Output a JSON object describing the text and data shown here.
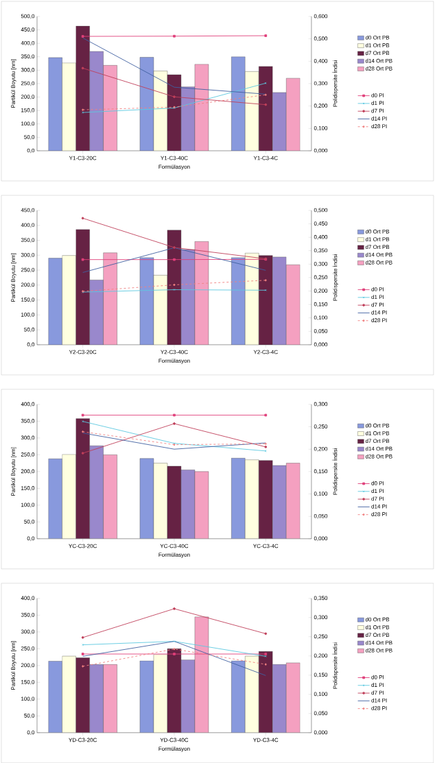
{
  "chart_data": [
    {
      "type": "bar",
      "xlabel": "Formülasyon",
      "ylabel": "Partikül Boyutu [nm]",
      "y2label": "Polidispersite İndisi",
      "categories": [
        "Y1-C3-20C",
        "Y1-C3-40C",
        "Y1-C3-4C"
      ],
      "ylim": [
        0,
        500
      ],
      "yticks": [
        {
          "value": 0,
          "label": "0,0"
        },
        {
          "value": 50,
          "label": "50,0"
        },
        {
          "value": 100,
          "label": "100,0"
        },
        {
          "value": 150,
          "label": "150,0"
        },
        {
          "value": 200,
          "label": "200,0"
        },
        {
          "value": 250,
          "label": "250,0"
        },
        {
          "value": 300,
          "label": "300,0"
        },
        {
          "value": 350,
          "label": "350,0"
        },
        {
          "value": 400,
          "label": "400,0"
        },
        {
          "value": 450,
          "label": "450,0"
        },
        {
          "value": 500,
          "label": "500,0"
        }
      ],
      "y2lim": [
        0,
        0.6
      ],
      "y2ticks": [
        {
          "value": 0,
          "label": "0,000"
        },
        {
          "value": 0.1,
          "label": "0,100"
        },
        {
          "value": 0.2,
          "label": "0,200"
        },
        {
          "value": 0.3,
          "label": "0,300"
        },
        {
          "value": 0.4,
          "label": "0,400"
        },
        {
          "value": 0.5,
          "label": "0,500"
        },
        {
          "value": 0.6,
          "label": "0,600"
        }
      ],
      "legend": "right",
      "series": [
        {
          "name": "d0 Ort PB",
          "color": "#8899dd",
          "values": [
            347,
            348,
            350
          ]
        },
        {
          "name": "d1 Ort PB",
          "color": "#ffffe0",
          "values": [
            327,
            297,
            295
          ]
        },
        {
          "name": "d7 Ort PB",
          "color": "#662244",
          "values": [
            464,
            283,
            314
          ]
        },
        {
          "name": "d14 Ort PB",
          "color": "#9988cc",
          "values": [
            370,
            238,
            217
          ]
        },
        {
          "name": "d28 Ort PB",
          "color": "#f4a0c0",
          "values": [
            318,
            322,
            270
          ]
        },
        {
          "name": "d0 PI",
          "type": "line",
          "axis": "y2",
          "color": "#e0407a",
          "marker": "square",
          "line_style": "solid",
          "values": [
            0.511,
            0.512,
            0.514
          ]
        },
        {
          "name": "d1 PI",
          "type": "line",
          "axis": "y2",
          "color": "#5bc8e0",
          "marker": "cross",
          "line_style": "solid",
          "values": [
            0.171,
            0.191,
            0.302
          ]
        },
        {
          "name": "d7 PI",
          "type": "line",
          "axis": "y2",
          "color": "#c0405a",
          "marker": "circle",
          "line_style": "solid",
          "values": [
            0.369,
            0.241,
            0.206
          ]
        },
        {
          "name": "d14 PI",
          "type": "line",
          "axis": "y2",
          "color": "#4060a0",
          "marker": "none",
          "line_style": "solid",
          "values": [
            0.504,
            0.284,
            0.253
          ]
        },
        {
          "name": "d28 PI",
          "type": "line",
          "axis": "y2",
          "color": "#f08080",
          "marker": "diamond",
          "line_style": "dashed",
          "values": [
            0.183,
            0.195,
            0.25
          ]
        }
      ]
    },
    {
      "type": "bar",
      "xlabel": "Formülasyon",
      "ylabel": "Partikül Boyutu [nm]",
      "y2label": "Polidispersite İndisi",
      "categories": [
        "Y2-C3-20C",
        "Y2-C3-40C",
        "Y2-C3-4C"
      ],
      "ylim": [
        0,
        450
      ],
      "yticks": [
        {
          "value": 0,
          "label": "0,0"
        },
        {
          "value": 50,
          "label": "50,0"
        },
        {
          "value": 100,
          "label": "100,0"
        },
        {
          "value": 150,
          "label": "150,0"
        },
        {
          "value": 200,
          "label": "200,0"
        },
        {
          "value": 250,
          "label": "250,0"
        },
        {
          "value": 300,
          "label": "300,0"
        },
        {
          "value": 350,
          "label": "350,0"
        },
        {
          "value": 400,
          "label": "400,0"
        },
        {
          "value": 450,
          "label": "450,0"
        }
      ],
      "y2lim": [
        0,
        0.5
      ],
      "y2ticks": [
        {
          "value": 0,
          "label": "0,000"
        },
        {
          "value": 0.05,
          "label": "0,050"
        },
        {
          "value": 0.1,
          "label": "0,100"
        },
        {
          "value": 0.15,
          "label": "0,150"
        },
        {
          "value": 0.2,
          "label": "0,200"
        },
        {
          "value": 0.25,
          "label": "0,250"
        },
        {
          "value": 0.3,
          "label": "0,300"
        },
        {
          "value": 0.35,
          "label": "0,350"
        },
        {
          "value": 0.4,
          "label": "0,400"
        },
        {
          "value": 0.45,
          "label": "0,450"
        },
        {
          "value": 0.5,
          "label": "0,500"
        }
      ],
      "legend": "right",
      "series": [
        {
          "name": "d0 Ort PB",
          "color": "#8899dd",
          "values": [
            290,
            292,
            292
          ]
        },
        {
          "name": "d1 Ort PB",
          "color": "#ffffe0",
          "values": [
            299,
            233,
            307
          ]
        },
        {
          "name": "d7 Ort PB",
          "color": "#662244",
          "values": [
            386,
            384,
            299
          ]
        },
        {
          "name": "d14 Ort PB",
          "color": "#9988cc",
          "values": [
            217,
            319,
            294
          ]
        },
        {
          "name": "d28 Ort PB",
          "color": "#f4a0c0",
          "values": [
            308,
            346,
            268
          ]
        },
        {
          "name": "d0 PI",
          "type": "line",
          "axis": "y2",
          "color": "#e0407a",
          "marker": "square",
          "line_style": "solid",
          "values": [
            0.317,
            0.317,
            0.318
          ]
        },
        {
          "name": "d1 PI",
          "type": "line",
          "axis": "y2",
          "color": "#5bc8e0",
          "marker": "cross",
          "line_style": "solid",
          "values": [
            0.196,
            0.205,
            0.203
          ]
        },
        {
          "name": "d7 PI",
          "type": "line",
          "axis": "y2",
          "color": "#c0405a",
          "marker": "circle",
          "line_style": "solid",
          "values": [
            0.471,
            0.362,
            0.32
          ]
        },
        {
          "name": "d14 PI",
          "type": "line",
          "axis": "y2",
          "color": "#4060a0",
          "marker": "none",
          "line_style": "solid",
          "values": [
            0.269,
            0.361,
            0.277
          ]
        },
        {
          "name": "d28 PI",
          "type": "line",
          "axis": "y2",
          "color": "#f08080",
          "marker": "diamond",
          "line_style": "dashed",
          "values": [
            0.199,
            0.223,
            0.24
          ]
        }
      ]
    },
    {
      "type": "bar",
      "xlabel": "Formülasyon",
      "ylabel": "Partikül Boyutu [nm]",
      "y2label": "Polidispersite İndisi",
      "categories": [
        "YC-C3-20C",
        "YC-C3-40C",
        "YC-C3-4C"
      ],
      "ylim": [
        0,
        400
      ],
      "yticks": [
        {
          "value": 0,
          "label": "0,0"
        },
        {
          "value": 50,
          "label": "50,0"
        },
        {
          "value": 100,
          "label": "100,0"
        },
        {
          "value": 150,
          "label": "150,0"
        },
        {
          "value": 200,
          "label": "200,0"
        },
        {
          "value": 250,
          "label": "250,0"
        },
        {
          "value": 300,
          "label": "300,0"
        },
        {
          "value": 350,
          "label": "350,0"
        },
        {
          "value": 400,
          "label": "400,0"
        }
      ],
      "y2lim": [
        0,
        0.3
      ],
      "y2ticks": [
        {
          "value": 0,
          "label": "0,000"
        },
        {
          "value": 0.05,
          "label": "0,050"
        },
        {
          "value": 0.1,
          "label": "0,100"
        },
        {
          "value": 0.15,
          "label": "0,150"
        },
        {
          "value": 0.2,
          "label": "0,200"
        },
        {
          "value": 0.25,
          "label": "0,250"
        },
        {
          "value": 0.3,
          "label": "0,300"
        }
      ],
      "legend": "right",
      "series": [
        {
          "name": "d0 Ort PB",
          "color": "#8899dd",
          "values": [
            238,
            239,
            240
          ]
        },
        {
          "name": "d1 Ort PB",
          "color": "#ffffe0",
          "values": [
            251,
            225,
            235
          ]
        },
        {
          "name": "d7 Ort PB",
          "color": "#662244",
          "values": [
            358,
            216,
            233
          ]
        },
        {
          "name": "d14 Ort PB",
          "color": "#9988cc",
          "values": [
            277,
            205,
            218
          ]
        },
        {
          "name": "d28 Ort PB",
          "color": "#f4a0c0",
          "values": [
            250,
            200,
            225
          ]
        },
        {
          "name": "d0 PI",
          "type": "line",
          "axis": "y2",
          "color": "#e0407a",
          "marker": "square",
          "line_style": "solid",
          "values": [
            0.276,
            0.276,
            0.276
          ]
        },
        {
          "name": "d1 PI",
          "type": "line",
          "axis": "y2",
          "color": "#5bc8e0",
          "marker": "cross",
          "line_style": "solid",
          "values": [
            0.262,
            0.213,
            0.196
          ]
        },
        {
          "name": "d7 PI",
          "type": "line",
          "axis": "y2",
          "color": "#c0405a",
          "marker": "circle",
          "line_style": "solid",
          "values": [
            0.191,
            0.257,
            0.205
          ]
        },
        {
          "name": "d14 PI",
          "type": "line",
          "axis": "y2",
          "color": "#4060a0",
          "marker": "none",
          "line_style": "solid",
          "values": [
            0.236,
            0.2,
            0.214
          ]
        },
        {
          "name": "d28 PI",
          "type": "line",
          "axis": "y2",
          "color": "#f08080",
          "marker": "diamond",
          "line_style": "dashed",
          "values": [
            0.239,
            0.21,
            0.212
          ]
        }
      ]
    },
    {
      "type": "bar",
      "xlabel": "Formülasyon",
      "ylabel": "Partikül Boyutu [nm]",
      "y2label": "Polidispersite İndisi",
      "categories": [
        "YD-C3-20C",
        "YD-C3-40C",
        "YD-C3-4C"
      ],
      "ylim": [
        0,
        400
      ],
      "yticks": [
        {
          "value": 0,
          "label": "0,0"
        },
        {
          "value": 50,
          "label": "50,0"
        },
        {
          "value": 100,
          "label": "100,0"
        },
        {
          "value": 150,
          "label": "150,0"
        },
        {
          "value": 200,
          "label": "200,0"
        },
        {
          "value": 250,
          "label": "250,0"
        },
        {
          "value": 300,
          "label": "300,0"
        },
        {
          "value": 350,
          "label": "350,0"
        },
        {
          "value": 400,
          "label": "400,0"
        }
      ],
      "y2lim": [
        0,
        0.35
      ],
      "y2ticks": [
        {
          "value": 0,
          "label": "0,000"
        },
        {
          "value": 0.05,
          "label": "0,050"
        },
        {
          "value": 0.1,
          "label": "0,100"
        },
        {
          "value": 0.15,
          "label": "0,150"
        },
        {
          "value": 0.2,
          "label": "0,200"
        },
        {
          "value": 0.25,
          "label": "0,250"
        },
        {
          "value": 0.3,
          "label": "0,300"
        },
        {
          "value": 0.35,
          "label": "0,350"
        }
      ],
      "legend": "right",
      "series": [
        {
          "name": "d0 Ort PB",
          "color": "#8899dd",
          "values": [
            213,
            214,
            214
          ]
        },
        {
          "name": "d1 Ort PB",
          "color": "#ffffe0",
          "values": [
            228,
            233,
            228
          ]
        },
        {
          "name": "d7 Ort PB",
          "color": "#662244",
          "values": [
            223,
            250,
            242
          ]
        },
        {
          "name": "d14 Ort PB",
          "color": "#9988cc",
          "values": [
            203,
            217,
            203
          ]
        },
        {
          "name": "d28 Ort PB",
          "color": "#f4a0c0",
          "values": [
            203,
            345,
            208
          ]
        },
        {
          "name": "d0 PI",
          "type": "line",
          "axis": "y2",
          "color": "#e0407a",
          "marker": "square",
          "line_style": "solid",
          "values": [
            0.205,
            0.205,
            0.205
          ]
        },
        {
          "name": "d1 PI",
          "type": "line",
          "axis": "y2",
          "color": "#5bc8e0",
          "marker": "cross",
          "line_style": "solid",
          "values": [
            0.229,
            0.238,
            0.199
          ]
        },
        {
          "name": "d7 PI",
          "type": "line",
          "axis": "y2",
          "color": "#c0405a",
          "marker": "circle",
          "line_style": "solid",
          "values": [
            0.248,
            0.323,
            0.258
          ]
        },
        {
          "name": "d14 PI",
          "type": "line",
          "axis": "y2",
          "color": "#4060a0",
          "marker": "none",
          "line_style": "solid",
          "values": [
            0.199,
            0.238,
            0.149
          ]
        },
        {
          "name": "d28 PI",
          "type": "line",
          "axis": "y2",
          "color": "#f08080",
          "marker": "diamond",
          "line_style": "dashed",
          "values": [
            0.173,
            0.218,
            0.178
          ]
        }
      ]
    }
  ]
}
